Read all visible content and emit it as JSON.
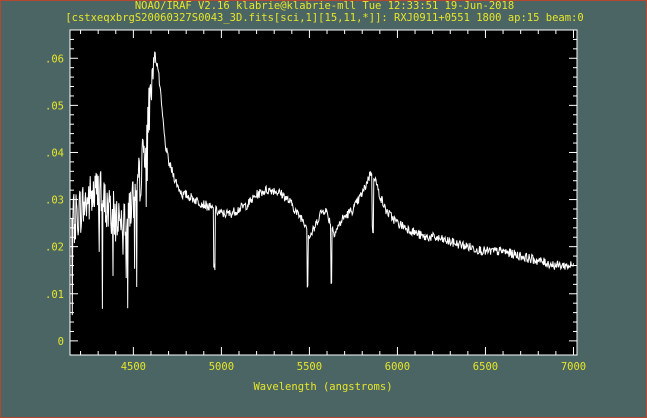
{
  "window": {
    "header_line1": "NOAO/IRAF V2.16 klabrie@klabrie-mll Tue 12:33:51 19-Jun-2018",
    "header_line2": "[cstxeqxbrgS20060327S0043_3D.fits[sci,1][15,11,*]]: RXJ0911+0551 1800  ap:15 beam:0"
  },
  "colors": {
    "background": "#4b6565",
    "plot_background": "#000000",
    "frame": "#ffffff",
    "text": "#e6e628",
    "spectrum": "#ffffff",
    "window_border": "#b3472f"
  },
  "chart_data": {
    "type": "line",
    "title": "",
    "xlabel": "Wavelength (angstroms)",
    "ylabel": "",
    "xlim": [
      4140,
      7020
    ],
    "ylim": [
      -0.003,
      0.066
    ],
    "grid": false,
    "x_ticks": [
      4500,
      5000,
      5500,
      6000,
      6500,
      7000
    ],
    "x_tick_labels": [
      "4500",
      "5000",
      "5500",
      "6000",
      "6500",
      "7000"
    ],
    "y_ticks": [
      0,
      0.01,
      0.02,
      0.03,
      0.04,
      0.05,
      0.06
    ],
    "y_tick_labels": [
      "0",
      ".01",
      ".02",
      ".03",
      ".04",
      ".05",
      ".06"
    ],
    "series": [
      {
        "x": [
          4150,
          4200,
          4250,
          4300,
          4350,
          4400,
          4450,
          4500,
          4540,
          4570,
          4600,
          4620,
          4640,
          4660,
          4680,
          4700,
          4720,
          4750,
          4780,
          4800,
          4850,
          4900,
          4950,
          5000,
          5050,
          5100,
          5150,
          5200,
          5250,
          5300,
          5350,
          5400,
          5430,
          5460,
          5490,
          5500,
          5530,
          5560,
          5590,
          5620,
          5640,
          5660,
          5690,
          5720,
          5750,
          5780,
          5810,
          5830,
          5850,
          5870,
          5890,
          5910,
          5930,
          5950,
          6000,
          6050,
          6100,
          6150,
          6200,
          6300,
          6400,
          6500,
          6600,
          6700,
          6800,
          6900,
          7000
        ],
        "y": [
          0.025,
          0.028,
          0.03,
          0.032,
          0.028,
          0.026,
          0.027,
          0.03,
          0.035,
          0.043,
          0.053,
          0.061,
          0.058,
          0.05,
          0.042,
          0.038,
          0.036,
          0.033,
          0.031,
          0.031,
          0.03,
          0.029,
          0.028,
          0.027,
          0.027,
          0.028,
          0.029,
          0.031,
          0.032,
          0.032,
          0.031,
          0.029,
          0.027,
          0.026,
          0.024,
          0.022,
          0.024,
          0.027,
          0.028,
          0.025,
          0.023,
          0.024,
          0.026,
          0.027,
          0.028,
          0.03,
          0.032,
          0.034,
          0.036,
          0.035,
          0.032,
          0.03,
          0.028,
          0.027,
          0.025,
          0.024,
          0.023,
          0.022,
          0.022,
          0.021,
          0.02,
          0.019,
          0.019,
          0.018,
          0.017,
          0.016,
          0.016
        ]
      }
    ]
  }
}
